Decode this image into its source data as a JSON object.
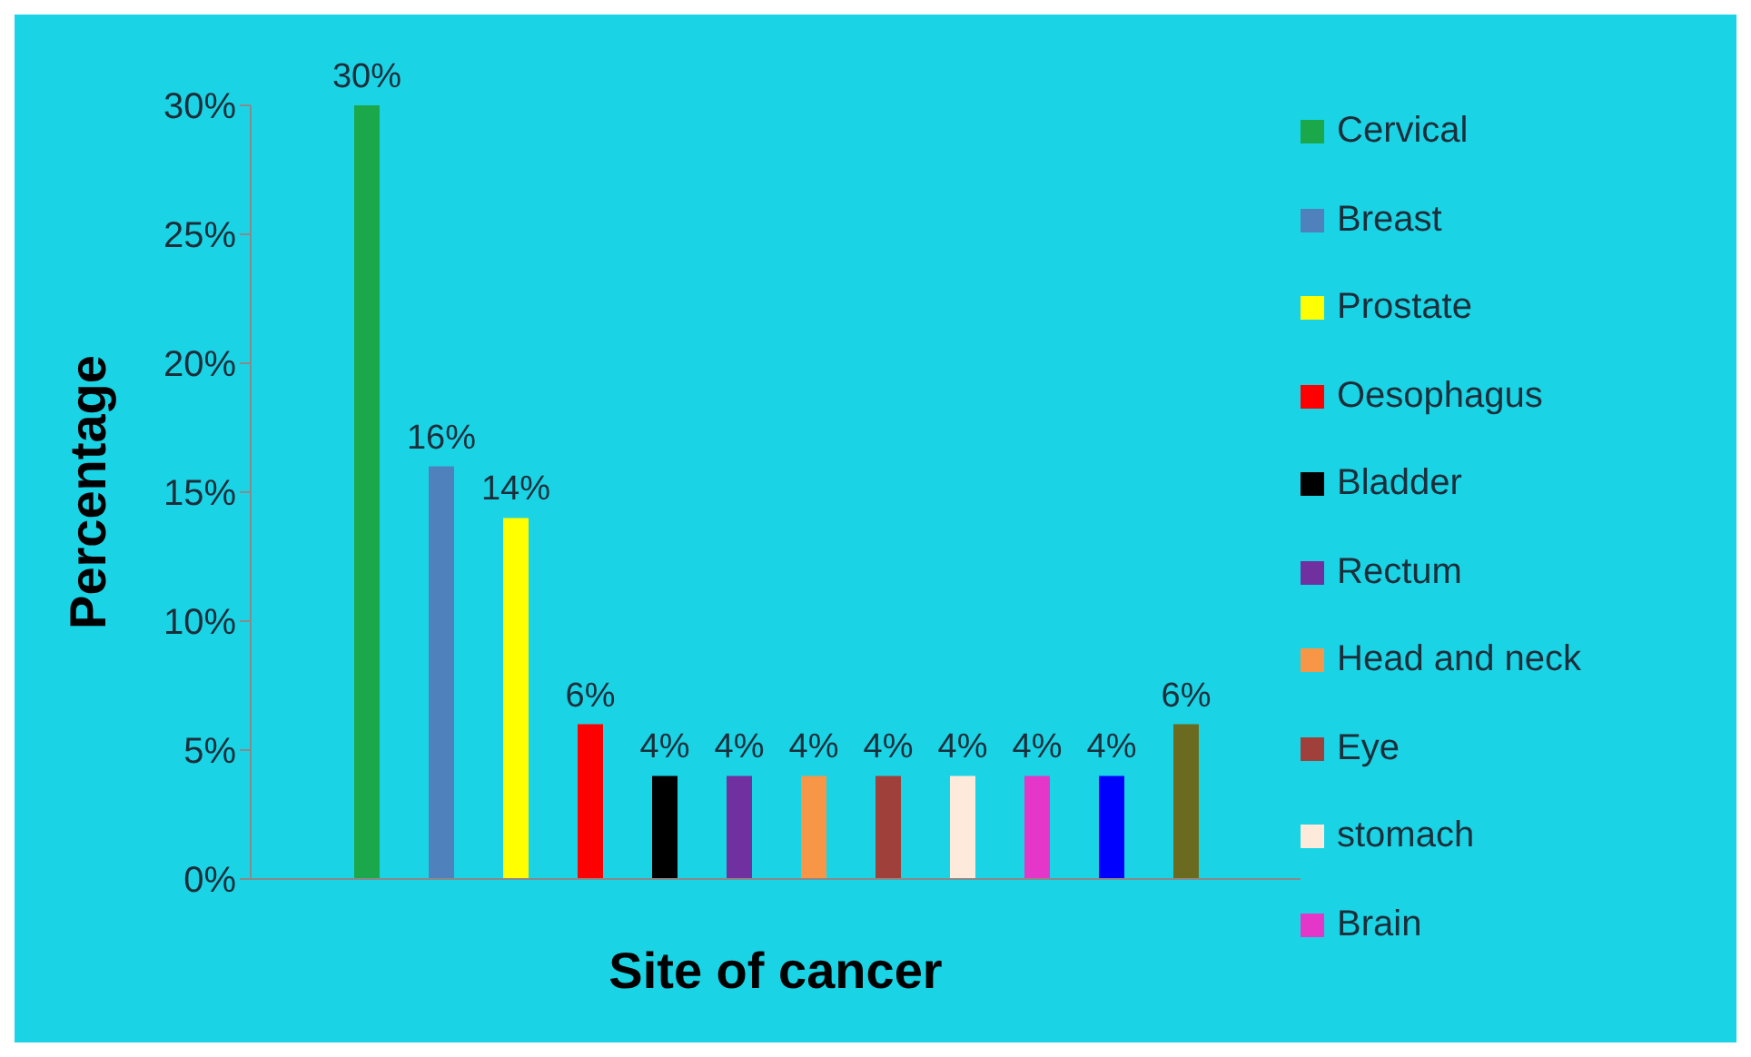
{
  "chart_data": {
    "type": "bar",
    "xlabel": "Site of cancer",
    "ylabel": "Percentage",
    "categories": [
      null
    ],
    "ylim": [
      0,
      30
    ],
    "yticks": [
      {
        "value": 0,
        "label": "0%"
      },
      {
        "value": 5,
        "label": "5%"
      },
      {
        "value": 10,
        "label": "10%"
      },
      {
        "value": 15,
        "label": "15%"
      },
      {
        "value": 20,
        "label": "20%"
      },
      {
        "value": 25,
        "label": "25%"
      },
      {
        "value": 30,
        "label": "30%"
      }
    ],
    "legend": "right",
    "series": [
      {
        "name": "Cervical",
        "color": "#1aa84a",
        "values": [
          30
        ],
        "value_labels": [
          "30%"
        ]
      },
      {
        "name": "Breast",
        "color": "#4f81bd",
        "values": [
          16
        ],
        "value_labels": [
          "16%"
        ]
      },
      {
        "name": "Prostate",
        "color": "#ffff00",
        "values": [
          14
        ],
        "value_labels": [
          "14%"
        ]
      },
      {
        "name": "Oesophagus",
        "color": "#ff0000",
        "values": [
          6
        ],
        "value_labels": [
          "6%"
        ]
      },
      {
        "name": "Bladder",
        "color": "#000000",
        "values": [
          4
        ],
        "value_labels": [
          "4%"
        ]
      },
      {
        "name": "Rectum",
        "color": "#7030a0",
        "values": [
          4
        ],
        "value_labels": [
          "4%"
        ]
      },
      {
        "name": "Head and neck",
        "color": "#f79646",
        "values": [
          4
        ],
        "value_labels": [
          "4%"
        ]
      },
      {
        "name": "Eye",
        "color": "#a0403a",
        "values": [
          4
        ],
        "value_labels": [
          "4%"
        ]
      },
      {
        "name": "stomach",
        "color": "#fdeada",
        "values": [
          4
        ],
        "value_labels": [
          "4%"
        ]
      },
      {
        "name": "Brain",
        "color": "#e436c8",
        "values": [
          4
        ],
        "value_labels": [
          "4%"
        ]
      },
      {
        "color": "#0000ff",
        "values": [
          4
        ],
        "value_labels": [
          "4%"
        ]
      },
      {
        "color": "#6b6b1f",
        "values": [
          6
        ],
        "value_labels": [
          "6%"
        ]
      }
    ]
  }
}
